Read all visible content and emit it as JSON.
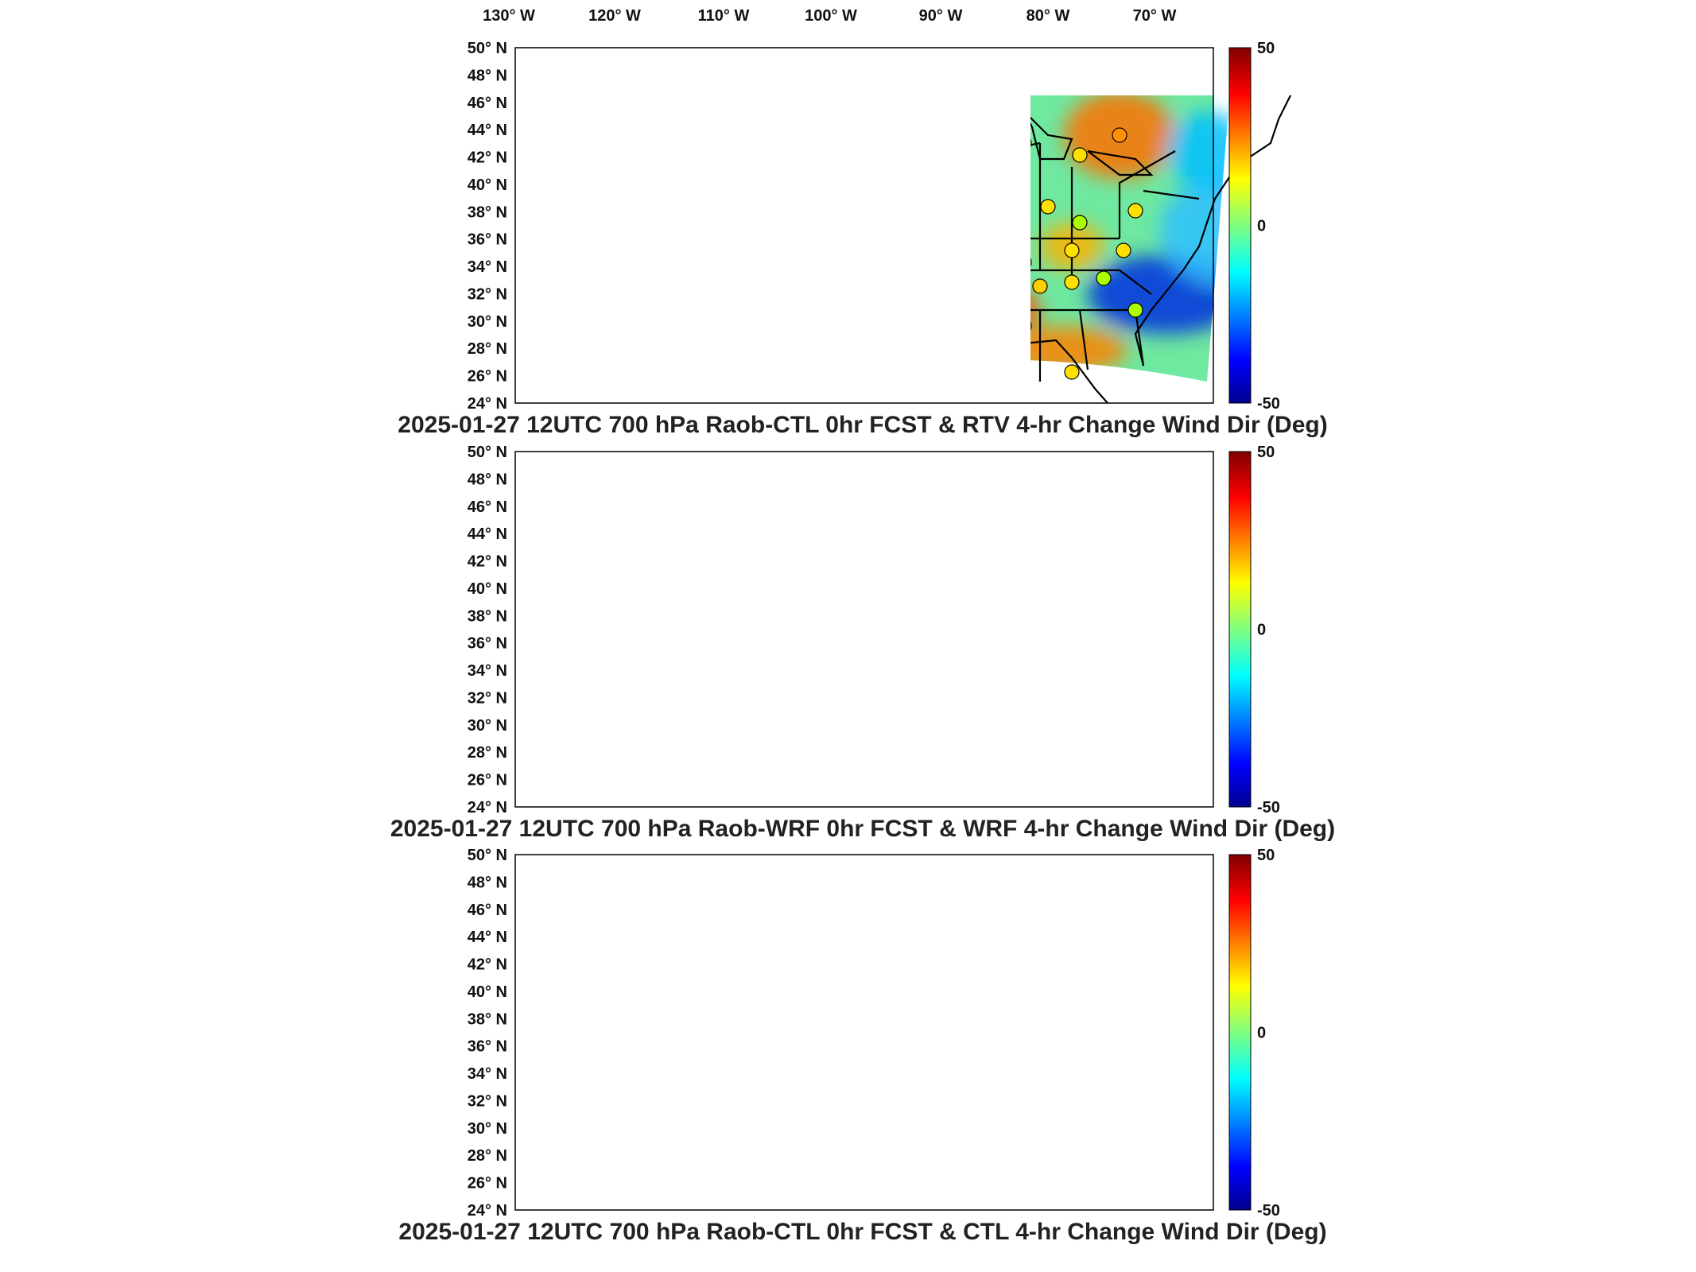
{
  "longitude_ticks": [
    {
      "deg": "130",
      "hemi": "W"
    },
    {
      "deg": "120",
      "hemi": "W"
    },
    {
      "deg": "110",
      "hemi": "W"
    },
    {
      "deg": "100",
      "hemi": "W"
    },
    {
      "deg": "90",
      "hemi": "W"
    },
    {
      "deg": "80",
      "hemi": "W"
    },
    {
      "deg": "70",
      "hemi": "W"
    }
  ],
  "latitude_ticks": [
    {
      "deg": "50",
      "hemi": "N"
    },
    {
      "deg": "48",
      "hemi": "N"
    },
    {
      "deg": "46",
      "hemi": "N"
    },
    {
      "deg": "44",
      "hemi": "N"
    },
    {
      "deg": "42",
      "hemi": "N"
    },
    {
      "deg": "40",
      "hemi": "N"
    },
    {
      "deg": "38",
      "hemi": "N"
    },
    {
      "deg": "36",
      "hemi": "N"
    },
    {
      "deg": "34",
      "hemi": "N"
    },
    {
      "deg": "32",
      "hemi": "N"
    },
    {
      "deg": "30",
      "hemi": "N"
    },
    {
      "deg": "28",
      "hemi": "N"
    },
    {
      "deg": "26",
      "hemi": "N"
    },
    {
      "deg": "24",
      "hemi": "N"
    }
  ],
  "colorbar": {
    "min_label": "-50",
    "mid_label": "0",
    "max_label": "50",
    "colormap": "jet",
    "colors": [
      "#00008f",
      "#0000ff",
      "#00ffff",
      "#ffff00",
      "#ff0000",
      "#800000"
    ]
  },
  "panels": [
    {
      "title": "2025-01-27 12UTC 700 hPa Raob-CTL 0hr FCST & RTV 4-hr Change Wind Dir (Deg)"
    },
    {
      "title": "2025-01-27 12UTC 700 hPa Raob-WRF 0hr FCST & WRF 4-hr Change Wind Dir (Deg)"
    },
    {
      "title": "2025-01-27 12UTC 700 hPa Raob-CTL 0hr FCST & CTL 4-hr Change Wind Dir (Deg)"
    }
  ],
  "map_data": {
    "projection": "Lambert conformal, contiguous United States",
    "lon_range": [
      -135,
      -65
    ],
    "lat_range": [
      24,
      50
    ],
    "value_range": [
      -50,
      50
    ],
    "raob_station_markers": "circles colored by Raob minus model wind direction difference"
  }
}
